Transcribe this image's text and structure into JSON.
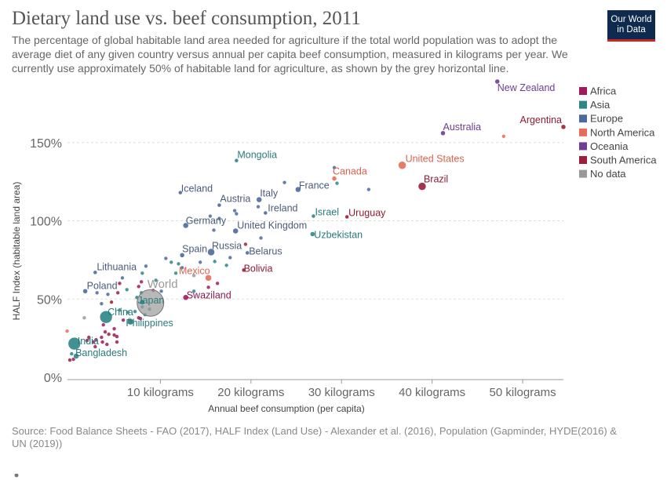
{
  "header": {
    "title": "Dietary land use vs. beef consumption, 2011",
    "subtitle": "The percentage of global habitable land area needed for agriculture if the total world population was to adopt the average diet of any given country versus annual per capita beef consumption, measured in kilograms per year. We currently use approximately 50% of habitable land for agriculture, as shown by the grey horizontal line.",
    "logo_line1": "Our World",
    "logo_line2": "in Data"
  },
  "footer": {
    "source": "Source: Food Balance Sheets - FAO (2017), HALF Index (Land Use) - Alexander et al. (2016), Population (Gapminder, HYDE(2016) & UN (2019))"
  },
  "colors": {
    "Africa": "#a2185c",
    "Asia": "#2d8587",
    "Europe": "#4c6a9c",
    "North America": "#e56e5a",
    "Oceania": "#6d3e91",
    "South America": "#9a1f38",
    "No data": "#999999",
    "World": "#a0a0a0",
    "grid": "#dddddd"
  },
  "chart_data": {
    "type": "scatter",
    "title": "Dietary land use vs. beef consumption, 2011",
    "xlabel": "Annual beef consumption (per capita)",
    "ylabel": "HALF Index (habitable land area)",
    "xlim": [
      0,
      54.5
    ],
    "ylim": [
      0,
      195
    ],
    "x_ticks": [
      10,
      20,
      30,
      40,
      50
    ],
    "x_tick_labels": [
      "10 kilograms",
      "20 kilograms",
      "30 kilograms",
      "40 kilograms",
      "50 kilograms"
    ],
    "y_ticks": [
      0,
      50,
      100,
      150
    ],
    "y_tick_labels": [
      "0%",
      "50%",
      "100%",
      "150%"
    ],
    "grid": "horizontal dashed",
    "legend_position": "right",
    "legend": [
      "Africa",
      "Asia",
      "Europe",
      "North America",
      "Oceania",
      "South America",
      "No data"
    ],
    "labeled_points": [
      {
        "name": "New Zealand",
        "x": 47.2,
        "y": 189,
        "region": "Oceania",
        "size": 3
      },
      {
        "name": "Argentina",
        "x": 54.5,
        "y": 160,
        "region": "South America",
        "size": 3
      },
      {
        "name": "Australia",
        "x": 41.2,
        "y": 156,
        "region": "Oceania",
        "size": 3
      },
      {
        "name": "United States",
        "x": 36.7,
        "y": 135.5,
        "region": "North America",
        "size": 5
      },
      {
        "name": "Brazil",
        "x": 38.9,
        "y": 122,
        "region": "South America",
        "size": 5
      },
      {
        "name": "Mongolia",
        "x": 18.4,
        "y": 138.5,
        "region": "Asia",
        "size": 2.5
      },
      {
        "name": "Canada",
        "x": 29.2,
        "y": 127,
        "region": "North America",
        "size": 3
      },
      {
        "name": "France",
        "x": 25.2,
        "y": 120,
        "region": "Europe",
        "size": 3.5
      },
      {
        "name": "Iceland",
        "x": 12.2,
        "y": 118,
        "region": "Europe",
        "size": 2.5
      },
      {
        "name": "Italy",
        "x": 20.9,
        "y": 113.5,
        "region": "Europe",
        "size": 3.5
      },
      {
        "name": "Austria",
        "x": 16.5,
        "y": 110,
        "region": "Europe",
        "size": 2.5
      },
      {
        "name": "Ireland",
        "x": 21.6,
        "y": 105,
        "region": "Europe",
        "size": 2.5
      },
      {
        "name": "Israel",
        "x": 26.9,
        "y": 103,
        "region": "Asia",
        "size": 2.5
      },
      {
        "name": "Uruguay",
        "x": 30.6,
        "y": 102.5,
        "region": "South America",
        "size": 2.5
      },
      {
        "name": "Germany",
        "x": 12.8,
        "y": 97,
        "region": "Europe",
        "size": 3.5
      },
      {
        "name": "United Kingdom",
        "x": 18.3,
        "y": 93.5,
        "region": "Europe",
        "size": 3.5
      },
      {
        "name": "Uzbekistan",
        "x": 26.8,
        "y": 91.5,
        "region": "Asia",
        "size": 3
      },
      {
        "name": "Spain",
        "x": 12.4,
        "y": 78,
        "region": "Europe",
        "size": 3
      },
      {
        "name": "Russia",
        "x": 15.6,
        "y": 80,
        "region": "Europe",
        "size": 4.5
      },
      {
        "name": "Belarus",
        "x": 19.6,
        "y": 79.5,
        "region": "Europe",
        "size": 2.5
      },
      {
        "name": "Bolivia",
        "x": 19.2,
        "y": 68.5,
        "region": "South America",
        "size": 2.5
      },
      {
        "name": "Lithuania",
        "x": 2.8,
        "y": 67,
        "region": "Europe",
        "size": 2.5
      },
      {
        "name": "Mexico",
        "x": 15.3,
        "y": 63.5,
        "region": "North America",
        "size": 4
      },
      {
        "name": "Poland",
        "x": 1.7,
        "y": 55,
        "region": "Europe",
        "size": 3
      },
      {
        "name": "World",
        "x": 8.9,
        "y": 47.5,
        "region": "World",
        "size": 17
      },
      {
        "name": "Swaziland",
        "x": 12.8,
        "y": 51,
        "region": "Africa",
        "size": 3.5
      },
      {
        "name": "China",
        "x": 4.0,
        "y": 38.5,
        "region": "Asia",
        "size": 8
      },
      {
        "name": "Japan",
        "x": 8.0,
        "y": 48,
        "region": "Asia",
        "size": 3.5
      },
      {
        "name": "Philippines",
        "x": 6.7,
        "y": 35.5,
        "region": "Asia",
        "size": 4
      },
      {
        "name": "India",
        "x": 0.5,
        "y": 21.5,
        "region": "Asia",
        "size": 8
      },
      {
        "name": "Bangladesh",
        "x": 0.7,
        "y": 13.5,
        "region": "Asia",
        "size": 3.5
      }
    ],
    "other_points": [
      {
        "x": 29.2,
        "y": 134,
        "region": "Europe"
      },
      {
        "x": 29.5,
        "y": 124,
        "region": "Asia"
      },
      {
        "x": 23.7,
        "y": 124.5,
        "region": "Europe"
      },
      {
        "x": 33.0,
        "y": 120,
        "region": "Europe"
      },
      {
        "x": 47.9,
        "y": 154,
        "region": "North America"
      },
      {
        "x": 20.8,
        "y": 109,
        "region": "Europe"
      },
      {
        "x": 18.2,
        "y": 106.5,
        "region": "Europe"
      },
      {
        "x": 18.4,
        "y": 104.5,
        "region": "Europe"
      },
      {
        "x": 15.5,
        "y": 103,
        "region": "Europe"
      },
      {
        "x": 16.5,
        "y": 101.5,
        "region": "Europe"
      },
      {
        "x": 15.9,
        "y": 94,
        "region": "Europe"
      },
      {
        "x": 21.1,
        "y": 89,
        "region": "Europe"
      },
      {
        "x": 19.4,
        "y": 85,
        "region": "South America"
      },
      {
        "x": 10.6,
        "y": 76,
        "region": "Europe"
      },
      {
        "x": 11.2,
        "y": 73.5,
        "region": "Asia"
      },
      {
        "x": 12.0,
        "y": 72.5,
        "region": "Asia"
      },
      {
        "x": 14.4,
        "y": 73.5,
        "region": "Europe"
      },
      {
        "x": 16.0,
        "y": 74,
        "region": "Asia"
      },
      {
        "x": 17.7,
        "y": 76.5,
        "region": "Europe"
      },
      {
        "x": 17.3,
        "y": 71.5,
        "region": "Asia"
      },
      {
        "x": 8.4,
        "y": 71,
        "region": "Europe"
      },
      {
        "x": 8.0,
        "y": 66.5,
        "region": "Asia"
      },
      {
        "x": 5.8,
        "y": 63.5,
        "region": "Europe"
      },
      {
        "x": 5.5,
        "y": 60,
        "region": "Africa"
      },
      {
        "x": 7.9,
        "y": 61,
        "region": "Africa"
      },
      {
        "x": 9.5,
        "y": 62,
        "region": "Asia"
      },
      {
        "x": 11.7,
        "y": 66.5,
        "region": "Asia"
      },
      {
        "x": 12.4,
        "y": 70,
        "region": "Europe"
      },
      {
        "x": 13.7,
        "y": 65,
        "region": "No data"
      },
      {
        "x": 13.7,
        "y": 55,
        "region": "Asia"
      },
      {
        "x": 15.3,
        "y": 57.5,
        "region": "Africa"
      },
      {
        "x": 16.3,
        "y": 60,
        "region": "Africa"
      },
      {
        "x": 10.1,
        "y": 55,
        "region": "Europe"
      },
      {
        "x": 9.2,
        "y": 55.5,
        "region": "Africa"
      },
      {
        "x": 3.0,
        "y": 54,
        "region": "Europe"
      },
      {
        "x": 4.2,
        "y": 53,
        "region": "Europe"
      },
      {
        "x": 5.3,
        "y": 54,
        "region": "South America"
      },
      {
        "x": 6.3,
        "y": 56,
        "region": "Asia"
      },
      {
        "x": 7.6,
        "y": 58,
        "region": "Africa"
      },
      {
        "x": 7.9,
        "y": 54,
        "region": "Asia"
      },
      {
        "x": 7.4,
        "y": 51,
        "region": "Asia"
      },
      {
        "x": 8.0,
        "y": 45,
        "region": "Europe"
      },
      {
        "x": 8.8,
        "y": 43.5,
        "region": "Asia"
      },
      {
        "x": 7.2,
        "y": 42,
        "region": "Asia"
      },
      {
        "x": 6.4,
        "y": 41.5,
        "region": "Asia"
      },
      {
        "x": 5.5,
        "y": 43,
        "region": "Asia"
      },
      {
        "x": 5.9,
        "y": 36.5,
        "region": "Africa"
      },
      {
        "x": 6.6,
        "y": 36.8,
        "region": "Asia"
      },
      {
        "x": 7.6,
        "y": 38,
        "region": "Africa"
      },
      {
        "x": 7.8,
        "y": 37.5,
        "region": "Africa"
      },
      {
        "x": 8.3,
        "y": 40,
        "region": "Asia"
      },
      {
        "x": 3.5,
        "y": 47,
        "region": "Europe"
      },
      {
        "x": 4.6,
        "y": 48,
        "region": "South America"
      },
      {
        "x": 3.7,
        "y": 33.5,
        "region": "Africa"
      },
      {
        "x": 4.9,
        "y": 31,
        "region": "Africa"
      },
      {
        "x": 3.9,
        "y": 29,
        "region": "Africa"
      },
      {
        "x": 4.3,
        "y": 27.5,
        "region": "South America"
      },
      {
        "x": 4.9,
        "y": 27,
        "region": "South America"
      },
      {
        "x": 5.2,
        "y": 26,
        "region": "Africa"
      },
      {
        "x": 3.5,
        "y": 25.5,
        "region": "Africa"
      },
      {
        "x": 2.9,
        "y": 24,
        "region": "Africa"
      },
      {
        "x": 2.1,
        "y": 25.5,
        "region": "South America"
      },
      {
        "x": 1.9,
        "y": 23.5,
        "region": "Africa"
      },
      {
        "x": 2.6,
        "y": 22.5,
        "region": "Africa"
      },
      {
        "x": 3.6,
        "y": 22.5,
        "region": "Africa"
      },
      {
        "x": 4.1,
        "y": 21,
        "region": "Africa"
      },
      {
        "x": 5.2,
        "y": 22.5,
        "region": "Africa"
      },
      {
        "x": 2.8,
        "y": 19.5,
        "region": "Africa"
      },
      {
        "x": 1.6,
        "y": 38,
        "region": "No data"
      },
      {
        "x": -0.3,
        "y": 29.5,
        "region": "North America"
      },
      {
        "x": 0.2,
        "y": 15,
        "region": "Asia"
      },
      {
        "x": 0.0,
        "y": 11,
        "region": "South America"
      },
      {
        "x": 0.4,
        "y": 11.5,
        "region": "Africa"
      }
    ]
  }
}
